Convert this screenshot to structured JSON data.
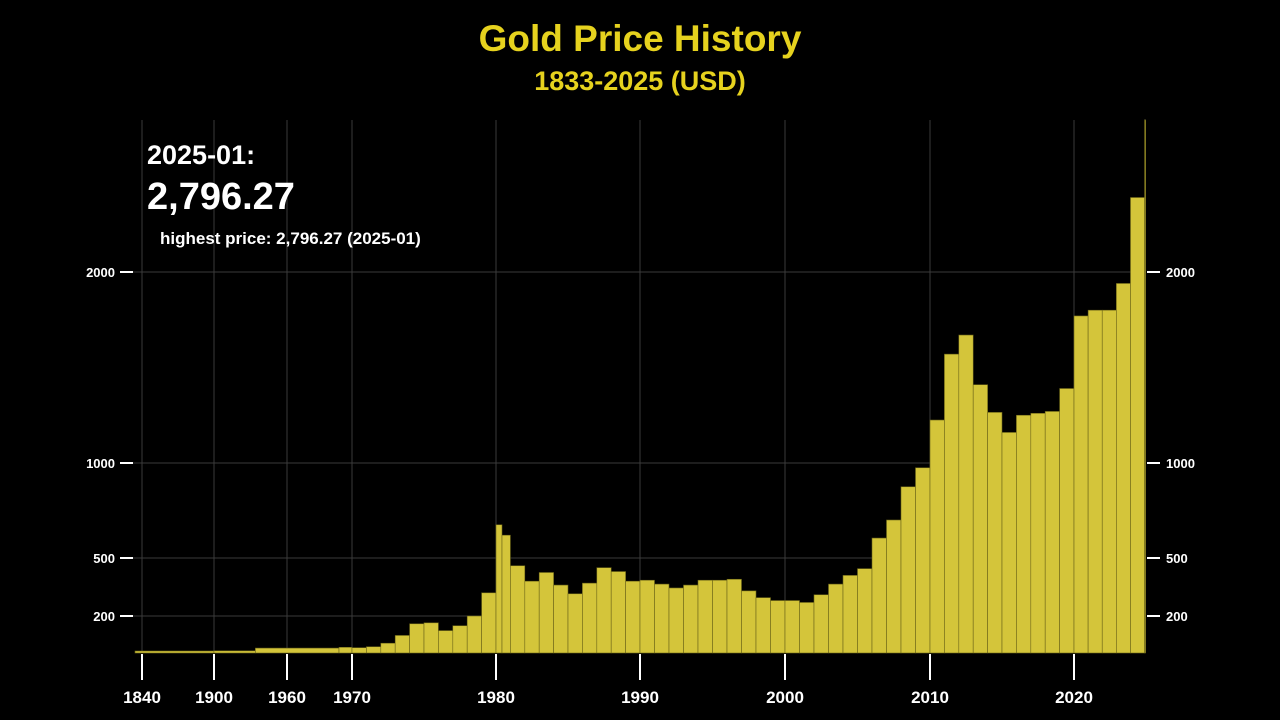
{
  "header": {
    "title": "Gold Price History",
    "subtitle": "1833-2025 (USD)"
  },
  "readout": {
    "date_label": "2025-01:",
    "value_label": "2,796.27",
    "highest_label": "highest price: 2,796.27 (2025-01)"
  },
  "colors": {
    "background": "#000000",
    "bar": "#d4c53a",
    "bar_edge": "#6b6418",
    "title": "#e6d21e",
    "text": "#ffffff",
    "grid": "#3a3a3a"
  },
  "chart_data": {
    "type": "bar",
    "title": "Gold Price History",
    "subtitle": "1833-2025 (USD)",
    "y_scale": "non-linear (as drawn)",
    "grid": true,
    "y_ticks": [
      {
        "label": "200",
        "value": 200
      },
      {
        "label": "500",
        "value": 500
      },
      {
        "label": "1000",
        "value": 1000
      },
      {
        "label": "2000",
        "value": 2000
      }
    ],
    "x_ticks": [
      "1840",
      "1900",
      "1960",
      "1970",
      "1980",
      "1990",
      "2000",
      "2010",
      "2020"
    ],
    "series": [
      {
        "points": [
          [
            "1833",
            20
          ],
          [
            "1900",
            21
          ],
          [
            "1934",
            35
          ],
          [
            "1968",
            39
          ],
          [
            "1970",
            37
          ],
          [
            "1971",
            42
          ],
          [
            "1972",
            60
          ],
          [
            "1973",
            100
          ],
          [
            "1974",
            160
          ],
          [
            "1975",
            165
          ],
          [
            "1976",
            125
          ],
          [
            "1977",
            150
          ],
          [
            "1978",
            200
          ],
          [
            "1979",
            320
          ],
          [
            "1980-01",
            675
          ],
          [
            "1980-06",
            620
          ],
          [
            "1981",
            460
          ],
          [
            "1982",
            380
          ],
          [
            "1983",
            425
          ],
          [
            "1984",
            360
          ],
          [
            "1985",
            315
          ],
          [
            "1986",
            370
          ],
          [
            "1987",
            450
          ],
          [
            "1988",
            430
          ],
          [
            "1989",
            380
          ],
          [
            "1990",
            385
          ],
          [
            "1991",
            365
          ],
          [
            "1992",
            345
          ],
          [
            "1993",
            360
          ],
          [
            "1994",
            385
          ],
          [
            "1995",
            385
          ],
          [
            "1996",
            390
          ],
          [
            "1997",
            330
          ],
          [
            "1998",
            295
          ],
          [
            "1999",
            280
          ],
          [
            "2000",
            280
          ],
          [
            "2001",
            270
          ],
          [
            "2002",
            310
          ],
          [
            "2003",
            365
          ],
          [
            "2004",
            410
          ],
          [
            "2005",
            445
          ],
          [
            "2006",
            605
          ],
          [
            "2007",
            700
          ],
          [
            "2008",
            875
          ],
          [
            "2009",
            975
          ],
          [
            "2010",
            1225
          ],
          [
            "2011",
            1570
          ],
          [
            "2012",
            1670
          ],
          [
            "2013",
            1410
          ],
          [
            "2014",
            1265
          ],
          [
            "2015",
            1160
          ],
          [
            "2016",
            1250
          ],
          [
            "2017",
            1260
          ],
          [
            "2018",
            1270
          ],
          [
            "2019",
            1390
          ],
          [
            "2020",
            1770
          ],
          [
            "2021",
            1800
          ],
          [
            "2022",
            1800
          ],
          [
            "2023",
            1940
          ],
          [
            "2024",
            2390
          ],
          [
            "2025-01",
            2796.27
          ]
        ]
      }
    ]
  }
}
